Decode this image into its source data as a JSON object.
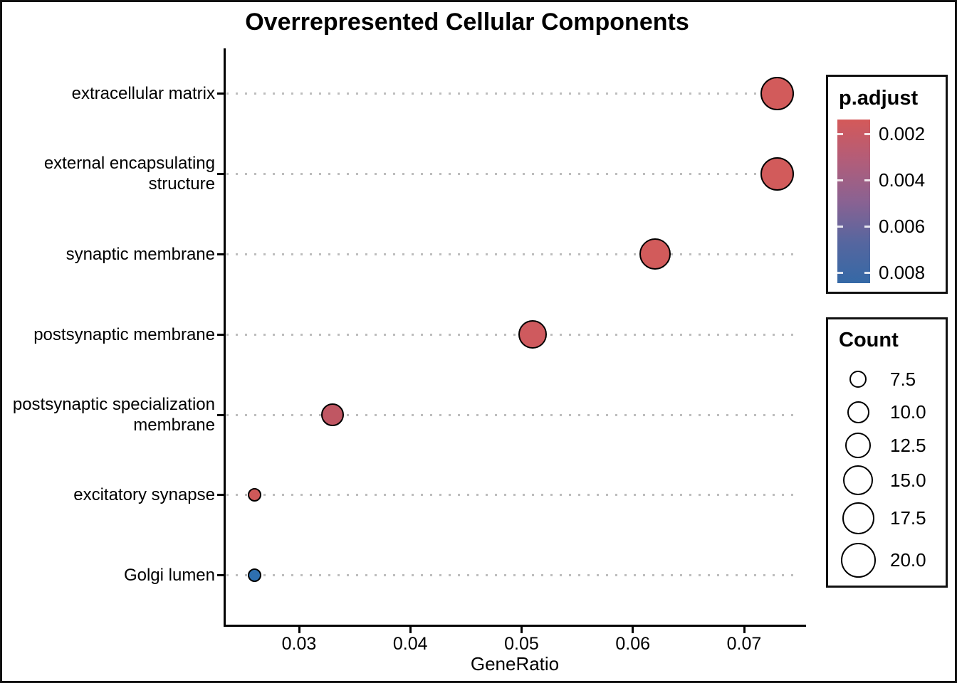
{
  "chart_data": {
    "type": "scatter",
    "title": "Overrepresented Cellular Components",
    "xlabel": "GeneRatio",
    "ylabel": "",
    "x_ticks": [
      "0.03",
      "0.04",
      "0.05",
      "0.06",
      "0.07"
    ],
    "xlim": [
      0.0232,
      0.0756
    ],
    "grid": "dotted horizontal per category",
    "categories": [
      "extracellular matrix",
      "external encapsulating\nstructure",
      "synaptic membrane",
      "postsynaptic membrane",
      "postsynaptic specialization\nmembrane",
      "excitatory synapse",
      "Golgi lumen"
    ],
    "points": [
      {
        "label": "extracellular matrix",
        "gene_ratio": 0.073,
        "count": 20,
        "p_adjust": 0.0015,
        "color": "#D25B5B",
        "radius_px": 23.5
      },
      {
        "label": "external encapsulating structure",
        "gene_ratio": 0.073,
        "count": 20,
        "p_adjust": 0.0015,
        "color": "#D25B5B",
        "radius_px": 23.5
      },
      {
        "label": "synaptic membrane",
        "gene_ratio": 0.062,
        "count": 17,
        "p_adjust": 0.0015,
        "color": "#D25B5B",
        "radius_px": 22
      },
      {
        "label": "postsynaptic membrane",
        "gene_ratio": 0.051,
        "count": 14,
        "p_adjust": 0.002,
        "color": "#CF5A5E",
        "radius_px": 20
      },
      {
        "label": "postsynaptic specialization membrane",
        "gene_ratio": 0.033,
        "count": 9,
        "p_adjust": 0.003,
        "color": "#C05763",
        "radius_px": 16
      },
      {
        "label": "excitatory synapse",
        "gene_ratio": 0.026,
        "count": 7,
        "p_adjust": 0.002,
        "color": "#CE5959",
        "radius_px": 9.5
      },
      {
        "label": "Golgi lumen",
        "gene_ratio": 0.026,
        "count": 7,
        "p_adjust": 0.008,
        "color": "#2E6FB0",
        "radius_px": 9.5
      }
    ],
    "legends": {
      "p_adjust": {
        "title": "p.adjust",
        "ticks": [
          "0.002",
          "0.004",
          "0.006",
          "0.008"
        ],
        "gradient_stops": [
          "#D45959",
          "#B25D79",
          "#8A6292",
          "#56669F",
          "#3569A6"
        ]
      },
      "count": {
        "title": "Count",
        "entries": [
          {
            "label": "7.5",
            "radius_px": 12
          },
          {
            "label": "10.0",
            "radius_px": 15.5
          },
          {
            "label": "12.5",
            "radius_px": 18
          },
          {
            "label": "15.0",
            "radius_px": 21
          },
          {
            "label": "17.5",
            "radius_px": 22.5
          },
          {
            "label": "20.0",
            "radius_px": 24.5
          }
        ]
      }
    }
  }
}
